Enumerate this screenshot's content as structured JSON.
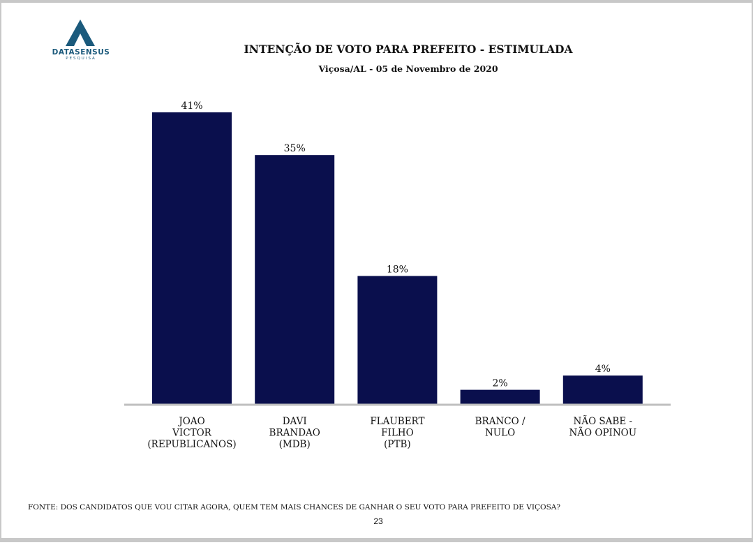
{
  "header": {
    "logo_name": "DATASENSUS",
    "logo_sub": "PESQUISA",
    "title": "INTENÇÃO DE VOTO PARA PREFEITO - ESTIMULADA",
    "subtitle": "Viçosa/AL - 05 de Novembro de 2020"
  },
  "colors": {
    "bar": "#0a0f4d",
    "axis": "#bfbfbf",
    "logo": "#1b5a7c"
  },
  "chart_data": {
    "type": "bar",
    "title": "INTENÇÃO DE VOTO PARA PREFEITO - ESTIMULADA",
    "subtitle": "Viçosa/AL - 05 de Novembro de 2020",
    "categories": [
      [
        "JOAO",
        "VICTOR",
        "(REPUBLICANOS)"
      ],
      [
        "DAVI",
        "BRANDAO",
        "(MDB)"
      ],
      [
        "FLAUBERT",
        "FILHO",
        "(PTB)"
      ],
      [
        "BRANCO /",
        "NULO"
      ],
      [
        "NÃO SABE  -",
        "NÃO OPINOU"
      ]
    ],
    "values": [
      41,
      35,
      18,
      2,
      4
    ],
    "value_labels": [
      "41%",
      "35%",
      "18%",
      "2%",
      "4%"
    ],
    "ylim": [
      0,
      41
    ],
    "grid": false,
    "legend": "none"
  },
  "footer": {
    "source": "FONTE: DOS CANDIDATOS QUE VOU CITAR AGORA, QUEM TEM MAIS CHANCES DE GANHAR O SEU VOTO PARA PREFEITO DE VIÇOSA?",
    "page": "23"
  }
}
